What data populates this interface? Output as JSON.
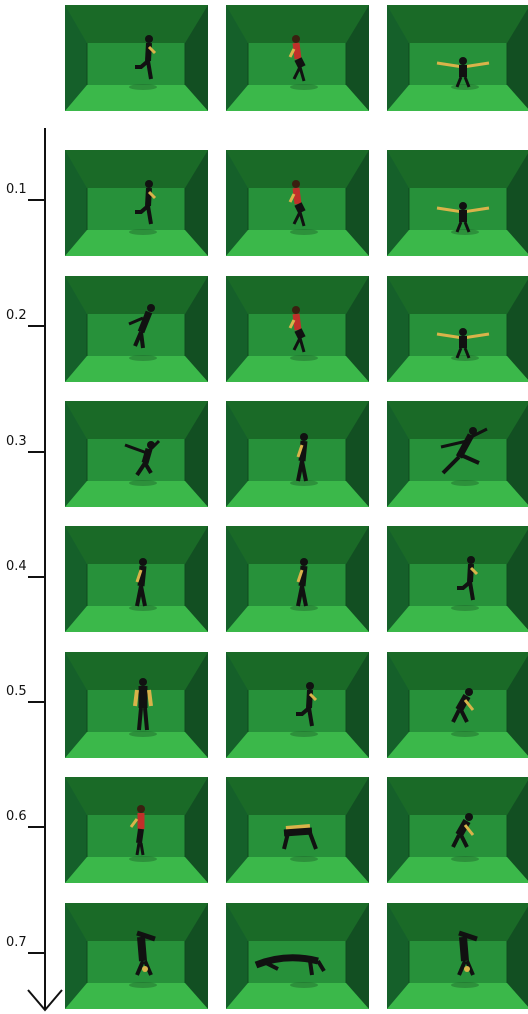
{
  "figure": {
    "reference_row": {
      "poses": [
        "kick",
        "woman-twist",
        "arms-out"
      ]
    },
    "axis": {
      "rows": [
        {
          "label": "0.1",
          "poses": [
            "kick",
            "woman-twist",
            "arms-out"
          ]
        },
        {
          "label": "0.2",
          "poses": [
            "lean",
            "woman-twist",
            "arms-out"
          ]
        },
        {
          "label": "0.3",
          "poses": [
            "lunge",
            "walk",
            "jump"
          ]
        },
        {
          "label": "0.4",
          "poses": [
            "walk",
            "walk",
            "kick"
          ]
        },
        {
          "label": "0.5",
          "poses": [
            "stand",
            "kick",
            "crouch"
          ]
        },
        {
          "label": "0.6",
          "poses": [
            "woman-stand",
            "bend",
            "crouch"
          ]
        },
        {
          "label": "0.7",
          "poses": [
            "handstand",
            "floor",
            "handstand"
          ]
        }
      ]
    },
    "colors": {
      "wall": "#1f7a2e",
      "floor": "#3bb84a",
      "body": "#111111",
      "red": "#c0302a",
      "skin": "#d9b34a"
    }
  }
}
